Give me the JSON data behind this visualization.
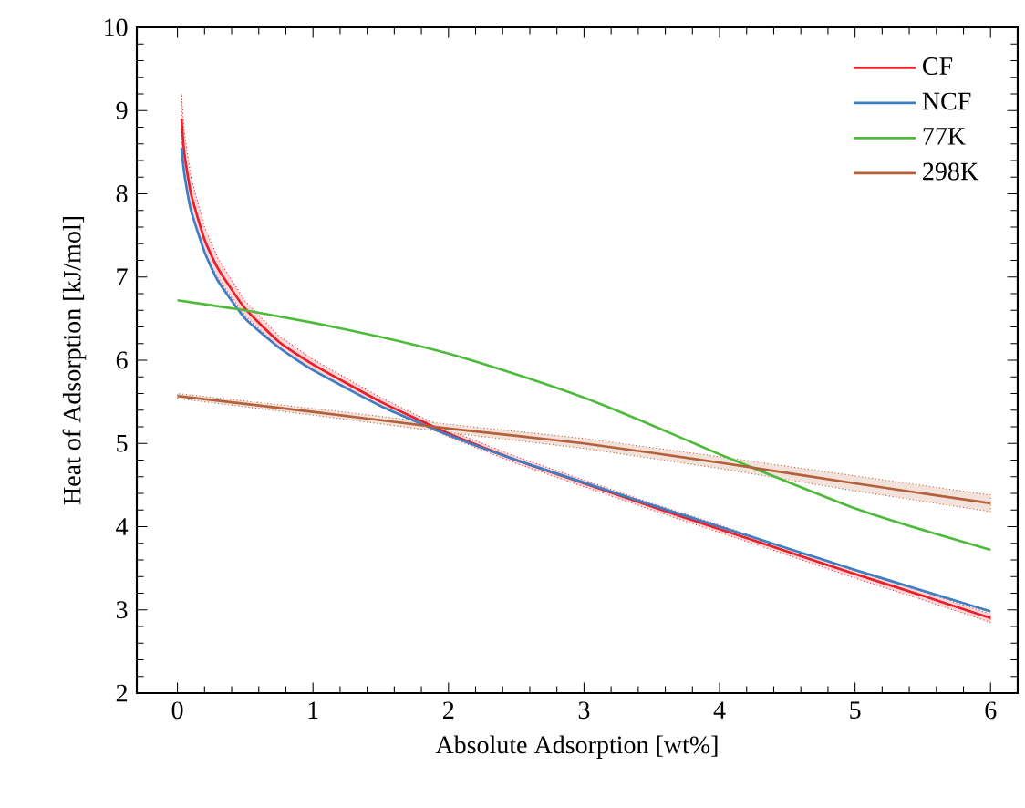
{
  "chart_data": {
    "type": "line",
    "xlabel": "Absolute Adsorption [wt%]",
    "ylabel": "Heat of Adsorption [kJ/mol]",
    "xlim": [
      -0.3,
      6.2
    ],
    "ylim": [
      2,
      10
    ],
    "xticks": [
      0,
      1,
      2,
      3,
      4,
      5,
      6
    ],
    "yticks": [
      2,
      3,
      4,
      5,
      6,
      7,
      8,
      9,
      10
    ],
    "grid": false,
    "legend": "top right",
    "marker": "none",
    "line_style": "solid",
    "series": [
      {
        "name": "CF",
        "color": "#e8202a",
        "x": [
          0.03,
          0.05,
          0.1,
          0.2,
          0.3,
          0.5,
          0.75,
          1,
          1.5,
          2,
          2.5,
          3,
          3.5,
          4,
          4.5,
          5,
          5.5,
          6
        ],
        "values": [
          8.9,
          8.5,
          8.0,
          7.45,
          7.1,
          6.62,
          6.22,
          5.95,
          5.5,
          5.12,
          4.8,
          4.52,
          4.24,
          3.97,
          3.7,
          3.43,
          3.17,
          2.9
        ],
        "lower": [
          8.6,
          8.25,
          7.8,
          7.3,
          6.98,
          6.53,
          6.15,
          5.89,
          5.45,
          5.08,
          4.76,
          4.48,
          4.2,
          3.93,
          3.66,
          3.38,
          3.12,
          2.85
        ],
        "upper": [
          9.2,
          8.75,
          8.2,
          7.6,
          7.22,
          6.71,
          6.29,
          6.01,
          5.55,
          5.16,
          4.84,
          4.56,
          4.28,
          4.02,
          3.74,
          3.47,
          3.22,
          2.95
        ]
      },
      {
        "name": "NCF",
        "color": "#3b7fc4",
        "x": [
          0.03,
          0.05,
          0.1,
          0.2,
          0.3,
          0.5,
          0.75,
          1,
          1.5,
          2,
          2.5,
          3,
          3.5,
          4,
          4.5,
          5,
          5.5,
          6
        ],
        "values": [
          8.55,
          8.25,
          7.8,
          7.3,
          6.95,
          6.5,
          6.15,
          5.88,
          5.45,
          5.1,
          4.8,
          4.53,
          4.26,
          4.0,
          3.74,
          3.48,
          3.23,
          2.98
        ]
      },
      {
        "name": "77K",
        "color": "#4dbb3a",
        "x": [
          0,
          0.5,
          1,
          1.5,
          2,
          2.5,
          3,
          3.5,
          4,
          4.5,
          5,
          5.5,
          6
        ],
        "values": [
          6.72,
          6.6,
          6.45,
          6.28,
          6.08,
          5.83,
          5.55,
          5.22,
          4.87,
          4.54,
          4.22,
          3.96,
          3.72
        ]
      },
      {
        "name": "298K",
        "color": "#b5603a",
        "x": [
          0,
          1,
          2,
          3,
          4,
          5,
          6
        ],
        "values": [
          5.57,
          5.38,
          5.18,
          5.0,
          4.77,
          4.52,
          4.28
        ],
        "lower": [
          5.54,
          5.34,
          5.13,
          4.94,
          4.7,
          4.43,
          4.18
        ],
        "upper": [
          5.6,
          5.42,
          5.23,
          5.06,
          4.84,
          4.61,
          4.38
        ]
      }
    ]
  }
}
